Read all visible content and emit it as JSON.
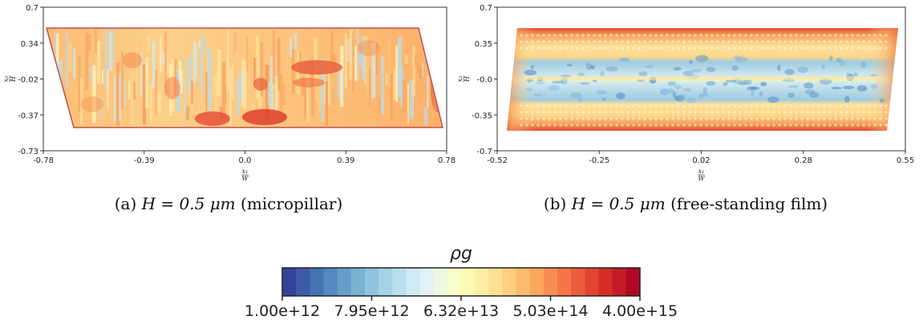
{
  "chart_data": [
    {
      "type": "heatmap",
      "xlabel": {
        "num": "x₁",
        "den": "W"
      },
      "ylabel": {
        "num": "x₂",
        "den": "H"
      },
      "xticks": [
        "-0.78",
        "-0.39",
        "0.0",
        "0.39",
        "0.78"
      ],
      "yticks": [
        "0.7",
        "0.34",
        "-0.02",
        "-0.37",
        "-0.73"
      ],
      "xlim": [
        -0.78,
        0.78
      ],
      "ylim": [
        -0.73,
        0.7
      ],
      "caption": {
        "label": "(a)",
        "math": "H = 0.5 μm",
        "text": "(micropillar)"
      },
      "outline_color": "#c0504d"
    },
    {
      "type": "heatmap",
      "xlabel": {
        "num": "x₁",
        "den": "W"
      },
      "ylabel": {
        "num": "x₂",
        "den": "H"
      },
      "xticks": [
        "-0.52",
        "-0.25",
        "0.02",
        "0.28",
        "0.55"
      ],
      "yticks": [
        "0.7",
        "0.35",
        "-0.0",
        "-0.35",
        "-0.7"
      ],
      "xlim": [
        -0.52,
        0.55
      ],
      "ylim": [
        -0.7,
        0.7
      ],
      "caption": {
        "label": "(b)",
        "math": "H = 0.5 μm",
        "text": "(free-standing film)"
      }
    }
  ],
  "colorbar": {
    "title": "ρg",
    "scale": "log",
    "range": [
      1000000000000.0,
      4000000000000000.0
    ],
    "ticks": [
      "1.00e+12",
      "7.95e+12",
      "6.32e+13",
      "5.03e+14",
      "4.00e+15"
    ],
    "colormap": "RdYlBu_r",
    "colors": [
      "#313695",
      "#4575b4",
      "#74add1",
      "#abd9e9",
      "#e0f3f8",
      "#ffffbf",
      "#fee090",
      "#fdae61",
      "#f46d43",
      "#d73027",
      "#a50026"
    ]
  }
}
